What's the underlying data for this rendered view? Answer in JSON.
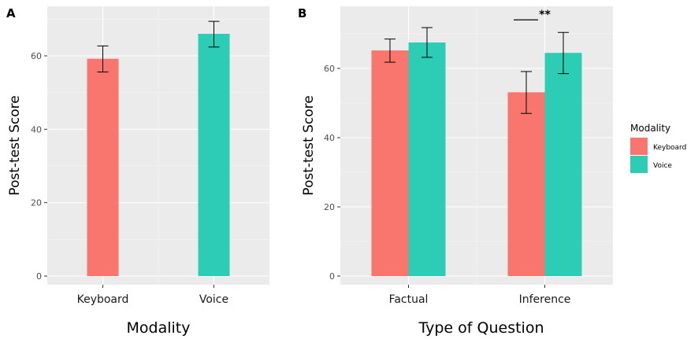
{
  "chart_data": [
    {
      "panel_label": "A",
      "type": "bar",
      "categories": [
        "Keyboard",
        "Voice"
      ],
      "values": [
        59.2,
        66.0
      ],
      "error_low": [
        55.6,
        62.4
      ],
      "error_high": [
        62.7,
        69.4
      ],
      "colors": [
        "#F8766D",
        "#2DCDB5"
      ],
      "xlabel": "Modality",
      "ylabel": "Post-test Score",
      "ylim": [
        0,
        73
      ],
      "yticks": [
        0,
        20,
        40,
        60
      ],
      "grid": true
    },
    {
      "panel_label": "B",
      "type": "bar",
      "categories": [
        "Factual",
        "Inference"
      ],
      "series": [
        {
          "name": "Keyboard",
          "values": [
            65.2,
            53.1
          ],
          "error_low": [
            61.8,
            47.0
          ],
          "error_high": [
            68.5,
            59.1
          ],
          "color": "#F8766D"
        },
        {
          "name": "Voice",
          "values": [
            67.5,
            64.5
          ],
          "error_low": [
            63.2,
            58.5
          ],
          "error_high": [
            71.8,
            70.4
          ],
          "color": "#2DCDB5"
        }
      ],
      "xlabel": "Type of Question",
      "ylabel": "Post-test Score",
      "ylim": [
        0,
        77.5
      ],
      "yticks": [
        0,
        20,
        40,
        60
      ],
      "grid": true,
      "significance": {
        "category": "Inference",
        "label": "**"
      },
      "legend": {
        "title": "Modality",
        "position": "right"
      }
    }
  ]
}
